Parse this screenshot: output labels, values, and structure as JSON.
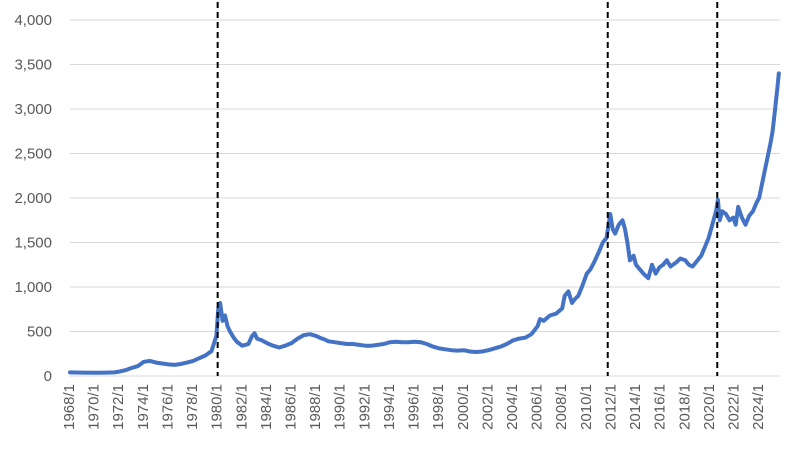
{
  "chart_data": {
    "type": "line",
    "title": "",
    "xlabel": "",
    "ylabel": "",
    "ylim": [
      0,
      4000
    ],
    "xlim": [
      1968,
      2025.7
    ],
    "grid": "horizontal",
    "legend": "none",
    "y_ticks": [
      {
        "value": 0,
        "label": "0"
      },
      {
        "value": 500,
        "label": "500"
      },
      {
        "value": 1000,
        "label": "1,000"
      },
      {
        "value": 1500,
        "label": "1,500"
      },
      {
        "value": 2000,
        "label": "2,000"
      },
      {
        "value": 2500,
        "label": "2,500"
      },
      {
        "value": 3000,
        "label": "3,000"
      },
      {
        "value": 3500,
        "label": "3,500"
      },
      {
        "value": 4000,
        "label": "4,000"
      }
    ],
    "x_ticks": [
      {
        "value": 1968,
        "label": "1968/1"
      },
      {
        "value": 1970,
        "label": "1970/1"
      },
      {
        "value": 1972,
        "label": "1972/1"
      },
      {
        "value": 1974,
        "label": "1974/1"
      },
      {
        "value": 1976,
        "label": "1976/1"
      },
      {
        "value": 1978,
        "label": "1978/1"
      },
      {
        "value": 1980,
        "label": "1980/1"
      },
      {
        "value": 1982,
        "label": "1982/1"
      },
      {
        "value": 1984,
        "label": "1984/1"
      },
      {
        "value": 1986,
        "label": "1986/1"
      },
      {
        "value": 1988,
        "label": "1988/1"
      },
      {
        "value": 1990,
        "label": "1990/1"
      },
      {
        "value": 1992,
        "label": "1992/1"
      },
      {
        "value": 1994,
        "label": "1994/1"
      },
      {
        "value": 1996,
        "label": "1996/1"
      },
      {
        "value": 1998,
        "label": "1998/1"
      },
      {
        "value": 2000,
        "label": "2000/1"
      },
      {
        "value": 2002,
        "label": "2002/1"
      },
      {
        "value": 2004,
        "label": "2004/1"
      },
      {
        "value": 2006,
        "label": "2006/1"
      },
      {
        "value": 2008,
        "label": "2008/1"
      },
      {
        "value": 2010,
        "label": "2010/1"
      },
      {
        "value": 2012,
        "label": "2012/1"
      },
      {
        "value": 2014,
        "label": "2014/1"
      },
      {
        "value": 2016,
        "label": "2016/1"
      },
      {
        "value": 2018,
        "label": "2018/1"
      },
      {
        "value": 2020,
        "label": "2020/1"
      },
      {
        "value": 2022,
        "label": "2022/1"
      },
      {
        "value": 2024,
        "label": "2024/1"
      }
    ],
    "vertical_markers": [
      {
        "x": 1980.0
      },
      {
        "x": 2011.7
      },
      {
        "x": 2020.6
      }
    ],
    "series": [
      {
        "color": "#4472c4",
        "x": [
          1968.0,
          1969.0,
          1970.0,
          1971.0,
          1971.6,
          1972.0,
          1972.5,
          1973.0,
          1973.5,
          1974.0,
          1974.5,
          1975.0,
          1975.5,
          1976.0,
          1976.5,
          1977.0,
          1977.5,
          1978.0,
          1978.5,
          1979.0,
          1979.5,
          1979.9,
          1980.05,
          1980.2,
          1980.4,
          1980.6,
          1980.8,
          1981.0,
          1981.3,
          1981.6,
          1982.0,
          1982.5,
          1982.8,
          1983.0,
          1983.2,
          1983.6,
          1984.0,
          1984.5,
          1985.0,
          1985.5,
          1986.0,
          1986.5,
          1987.0,
          1987.5,
          1988.0,
          1988.3,
          1988.7,
          1989.0,
          1989.5,
          1990.0,
          1990.5,
          1991.0,
          1991.5,
          1992.0,
          1992.5,
          1993.0,
          1993.5,
          1994.0,
          1994.5,
          1995.0,
          1995.5,
          1996.0,
          1996.5,
          1997.0,
          1997.5,
          1998.0,
          1998.5,
          1999.0,
          1999.5,
          2000.0,
          2000.5,
          2001.0,
          2001.5,
          2002.0,
          2002.5,
          2003.0,
          2003.5,
          2004.0,
          2004.5,
          2005.0,
          2005.5,
          2006.0,
          2006.2,
          2006.5,
          2007.0,
          2007.5,
          2008.0,
          2008.2,
          2008.5,
          2008.8,
          2009.0,
          2009.3,
          2009.6,
          2010.0,
          2010.3,
          2010.6,
          2011.0,
          2011.3,
          2011.6,
          2011.75,
          2011.9,
          2012.1,
          2012.3,
          2012.6,
          2012.9,
          2013.1,
          2013.3,
          2013.5,
          2013.8,
          2014.0,
          2014.3,
          2014.6,
          2015.0,
          2015.3,
          2015.6,
          2015.9,
          2016.2,
          2016.5,
          2016.8,
          2017.0,
          2017.3,
          2017.6,
          2018.0,
          2018.3,
          2018.6,
          2019.0,
          2019.3,
          2019.6,
          2019.9,
          2020.2,
          2020.5,
          2020.65,
          2020.8,
          2021.0,
          2021.3,
          2021.6,
          2021.9,
          2022.1,
          2022.3,
          2022.6,
          2022.9,
          2023.2,
          2023.5,
          2023.8,
          2024.0,
          2024.3,
          2024.6,
          2024.9,
          2025.1,
          2025.3,
          2025.5,
          2025.6
        ],
        "values": [
          40,
          38,
          36,
          38,
          40,
          50,
          65,
          90,
          110,
          160,
          170,
          150,
          140,
          130,
          125,
          135,
          150,
          170,
          200,
          230,
          280,
          450,
          760,
          820,
          620,
          680,
          560,
          500,
          430,
          380,
          340,
          360,
          450,
          480,
          420,
          400,
          370,
          340,
          320,
          340,
          370,
          420,
          460,
          470,
          450,
          430,
          410,
          390,
          380,
          370,
          360,
          360,
          350,
          340,
          340,
          350,
          360,
          380,
          385,
          380,
          380,
          385,
          380,
          360,
          330,
          310,
          300,
          290,
          285,
          290,
          275,
          270,
          275,
          290,
          310,
          330,
          360,
          400,
          420,
          430,
          470,
          560,
          640,
          620,
          680,
          700,
          760,
          900,
          950,
          820,
          860,
          900,
          1000,
          1150,
          1200,
          1280,
          1400,
          1500,
          1550,
          1680,
          1820,
          1650,
          1600,
          1700,
          1750,
          1650,
          1500,
          1300,
          1350,
          1250,
          1200,
          1150,
          1100,
          1250,
          1150,
          1220,
          1250,
          1300,
          1230,
          1250,
          1280,
          1320,
          1300,
          1250,
          1230,
          1300,
          1350,
          1450,
          1550,
          1700,
          1850,
          1980,
          1750,
          1850,
          1820,
          1750,
          1780,
          1700,
          1900,
          1780,
          1700,
          1800,
          1850,
          1950,
          2000,
          2200,
          2400,
          2600,
          2750,
          3000,
          3250,
          3400
        ]
      }
    ]
  }
}
